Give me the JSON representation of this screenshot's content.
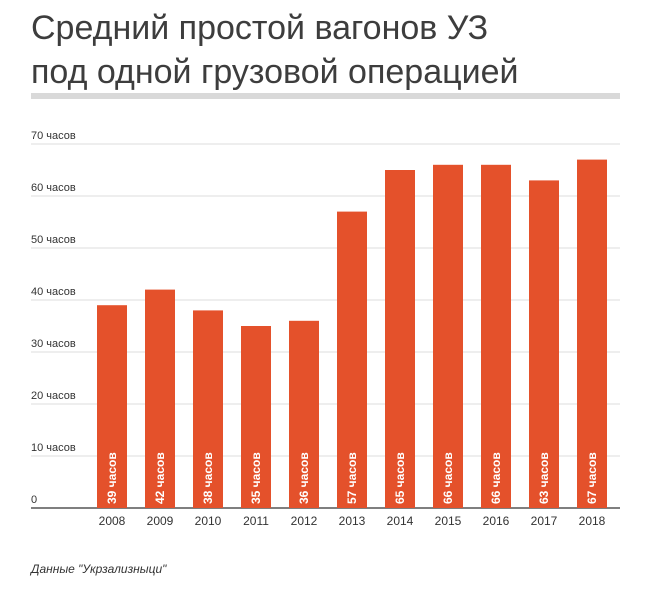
{
  "title_line1": "Средний простой вагонов УЗ",
  "title_line2": "под одной грузовой операцией",
  "source": "Данные \"Укрзализныци\"",
  "colors": {
    "bar": "#e4512b",
    "grid": "#dcdcdc",
    "axis_text": "#333333",
    "label_text": "#ffffff"
  },
  "chart_data": {
    "type": "bar",
    "categories": [
      "2008",
      "2009",
      "2010",
      "2011",
      "2012",
      "2013",
      "2014",
      "2015",
      "2016",
      "2017",
      "2018"
    ],
    "values": [
      39,
      42,
      38,
      35,
      36,
      57,
      65,
      66,
      66,
      63,
      67
    ],
    "value_labels": [
      "39 часов",
      "42 часов",
      "38 часов",
      "35 часов",
      "36 часов",
      "57 часов",
      "65 часов",
      "66 часов",
      "66 часов",
      "63 часов",
      "67 часов"
    ],
    "y_ticks": [
      0,
      10,
      20,
      30,
      40,
      50,
      60,
      70
    ],
    "y_tick_labels": [
      "0",
      "10 часов",
      "20 часов",
      "30 часов",
      "40 часов",
      "50 часов",
      "60 часов",
      "70 часов"
    ],
    "ylim": [
      0,
      70
    ],
    "grid": true,
    "legend": "none"
  }
}
